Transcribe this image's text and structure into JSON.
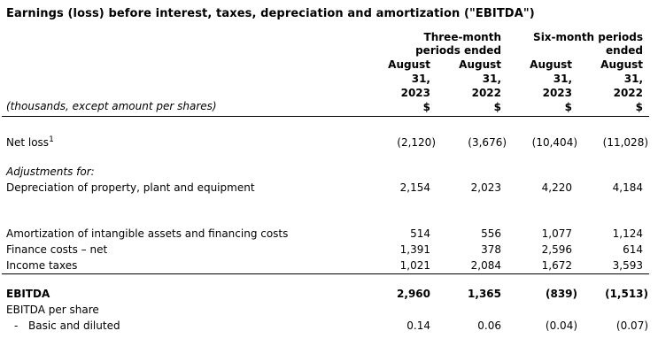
{
  "page": {
    "title": "Earnings (loss) before interest, taxes, depreciation and amortization (\"EBITDA\")"
  },
  "table": {
    "note": "(thousands, except amount per shares)",
    "col_groups": [
      {
        "lines": [
          "Three-month",
          "periods ended"
        ]
      },
      {
        "lines": [
          "Six-month periods",
          "ended"
        ]
      }
    ],
    "columns": [
      {
        "month": "August",
        "day": "31,",
        "year": "2023",
        "unit": "$"
      },
      {
        "month": "August",
        "day": "31,",
        "year": "2022",
        "unit": "$"
      },
      {
        "month": "August",
        "day": "31,",
        "year": "2023",
        "unit": "$"
      },
      {
        "month": "August",
        "day": "31,",
        "year": "2022",
        "unit": "$"
      }
    ],
    "rows": [
      {
        "label": "Net loss",
        "footnote": "1",
        "values": [
          "(2,120)",
          "(3,676)",
          "(10,404)",
          "(11,028)"
        ]
      },
      {
        "label": "Adjustments for:"
      },
      {
        "label": "Depreciation of property, plant and equipment",
        "values": [
          "2,154",
          "2,023",
          "4,220",
          "4,184"
        ]
      },
      {
        "label": "Amortization of intangible assets and financing costs",
        "values": [
          "514",
          "556",
          "1,077",
          "1,124"
        ]
      },
      {
        "label": "Finance costs – net",
        "values": [
          "1,391",
          "378",
          "2,596",
          "614"
        ]
      },
      {
        "label": "Income taxes",
        "values": [
          "1,021",
          "2,084",
          "1,672",
          "3,593"
        ]
      },
      {
        "label": "EBITDA",
        "values": [
          "2,960",
          "1,365",
          "(839)",
          "(1,513)"
        ]
      },
      {
        "label": "EBITDA per share"
      },
      {
        "label": "Basic and diluted",
        "dash": "-",
        "values": [
          "0.14",
          "0.06",
          "(0.04)",
          "(0.07)"
        ]
      }
    ]
  }
}
